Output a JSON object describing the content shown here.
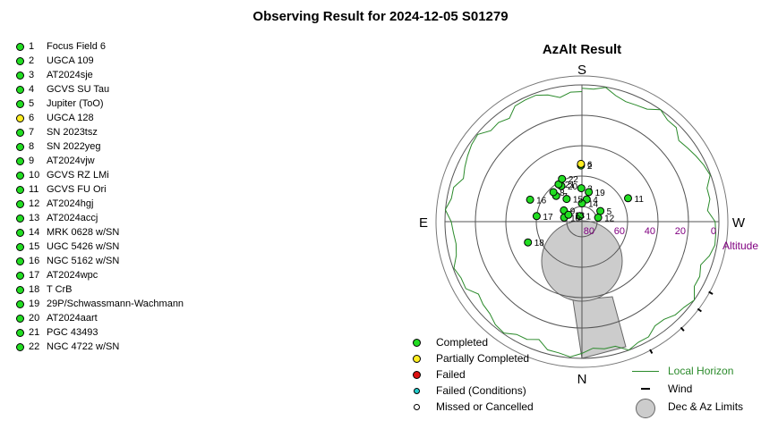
{
  "title": "Observing Result for 2024-12-05 S01279",
  "targets": [
    {
      "num": "1",
      "name": "Focus Field 6",
      "status": "completed"
    },
    {
      "num": "2",
      "name": "UGCA 109",
      "status": "completed"
    },
    {
      "num": "3",
      "name": "AT2024sje",
      "status": "completed"
    },
    {
      "num": "4",
      "name": "GCVS SU Tau",
      "status": "completed"
    },
    {
      "num": "5",
      "name": "Jupiter (ToO)",
      "status": "completed"
    },
    {
      "num": "6",
      "name": "UGCA 128",
      "status": "partial"
    },
    {
      "num": "7",
      "name": "SN 2023tsz",
      "status": "completed"
    },
    {
      "num": "8",
      "name": "SN 2022yeg",
      "status": "completed"
    },
    {
      "num": "9",
      "name": "AT2024vjw",
      "status": "completed"
    },
    {
      "num": "10",
      "name": "GCVS RZ LMi",
      "status": "completed"
    },
    {
      "num": "11",
      "name": "GCVS FU Ori",
      "status": "completed"
    },
    {
      "num": "12",
      "name": "AT2024hgj",
      "status": "completed"
    },
    {
      "num": "13",
      "name": "AT2024accj",
      "status": "completed"
    },
    {
      "num": "14",
      "name": "MRK 0628 w/SN",
      "status": "completed"
    },
    {
      "num": "15",
      "name": "UGC 5426 w/SN",
      "status": "completed"
    },
    {
      "num": "16",
      "name": "NGC 5162 w/SN",
      "status": "completed"
    },
    {
      "num": "17",
      "name": "AT2024wpc",
      "status": "completed"
    },
    {
      "num": "18",
      "name": "T CrB",
      "status": "completed"
    },
    {
      "num": "19",
      "name": "29P/Schwassmann-Wachmann",
      "status": "completed"
    },
    {
      "num": "20",
      "name": "AT2024aart",
      "status": "completed"
    },
    {
      "num": "21",
      "name": "PGC 43493",
      "status": "completed"
    },
    {
      "num": "22",
      "name": "NGC 4722 w/SN",
      "status": "completed"
    }
  ],
  "colors": {
    "completed": "#22dd22",
    "partial": "#ffee22",
    "failed": "#dd1111",
    "failed_conditions": "#22cccc",
    "missed": "#ffffff",
    "horizon": "#2a8a2a",
    "altitude_label": "#800080",
    "limits_fill": "#cccccc",
    "grid": "#555555"
  },
  "chart_data": {
    "type": "scatter",
    "projection": "polar-azalt",
    "title": "AzAlt Result",
    "radial_axis": {
      "label": "Altitude",
      "ticks": [
        80,
        60,
        40,
        20,
        0
      ],
      "range": [
        90,
        0
      ]
    },
    "directions": {
      "top": "S",
      "bottom": "N",
      "left": "E",
      "right": "W"
    },
    "points": [
      {
        "label": "1",
        "az_from_top": -22,
        "alt": 86,
        "status": "completed"
      },
      {
        "label": "2",
        "az_from_top": -1,
        "alt": 53,
        "status": "completed"
      },
      {
        "label": "3",
        "az_from_top": -1,
        "alt": 68,
        "status": "completed"
      },
      {
        "label": "4",
        "az_from_top": 12,
        "alt": 75,
        "status": "completed"
      },
      {
        "label": "5",
        "az_from_top": 60,
        "alt": 76,
        "status": "completed"
      },
      {
        "label": "6",
        "az_from_top": -1,
        "alt": 52,
        "status": "partial"
      },
      {
        "label": "7",
        "az_from_top": -45,
        "alt": 66,
        "status": "completed"
      },
      {
        "label": "8",
        "az_from_top": -44,
        "alt": 63,
        "status": "completed"
      },
      {
        "label": "9",
        "az_from_top": -58,
        "alt": 76,
        "status": "completed"
      },
      {
        "label": "10",
        "az_from_top": -77,
        "alt": 78,
        "status": "completed"
      },
      {
        "label": "11",
        "az_from_top": 63,
        "alt": 56,
        "status": "completed"
      },
      {
        "label": "12",
        "az_from_top": 76,
        "alt": 79,
        "status": "completed"
      },
      {
        "label": "13",
        "az_from_top": -63,
        "alt": 80,
        "status": "completed"
      },
      {
        "label": "14",
        "az_from_top": 0,
        "alt": 78,
        "status": "completed"
      },
      {
        "label": "15",
        "az_from_top": -34,
        "alt": 72,
        "status": "completed"
      },
      {
        "label": "16",
        "az_from_top": -67,
        "alt": 53,
        "status": "completed"
      },
      {
        "label": "17",
        "az_from_top": -83,
        "alt": 60,
        "status": "completed"
      },
      {
        "label": "18",
        "az_from_top": -111,
        "alt": 52,
        "status": "completed"
      },
      {
        "label": "19",
        "az_from_top": 13,
        "alt": 70,
        "status": "completed"
      },
      {
        "label": "20",
        "az_from_top": -30,
        "alt": 63,
        "status": "completed"
      },
      {
        "label": "21",
        "az_from_top": -32,
        "alt": 61,
        "status": "completed"
      },
      {
        "label": "22",
        "az_from_top": -25,
        "alt": 59,
        "status": "completed"
      }
    ],
    "horizon_label": "Local Horizon",
    "wind_label": "Wind",
    "limits_label": "Dec & Az Limits"
  },
  "legend": {
    "completed": "Completed",
    "partial": "Partially Completed",
    "failed": "Failed",
    "failed_conditions": "Failed (Conditions)",
    "missed": "Missed or Cancelled"
  }
}
